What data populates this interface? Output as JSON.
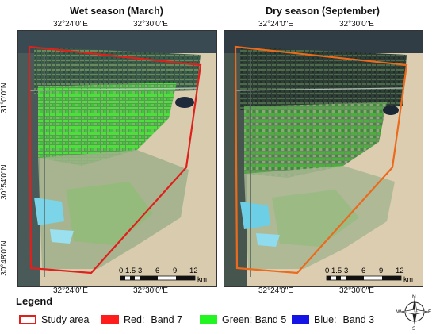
{
  "panels": [
    {
      "title": "Wet season (March)",
      "vegetation_color": "#4ee03a",
      "boundary_color": "#e0201c",
      "scale_labels": [
        "0",
        "1.5",
        "3",
        "6",
        "9",
        "12"
      ],
      "scale_unit": "km"
    },
    {
      "title": "Dry season (September)",
      "vegetation_color": "#4cae3c",
      "boundary_color": "#ec6a1c",
      "scale_labels": [
        "0",
        "1.5",
        "3",
        "6",
        "9",
        "12"
      ],
      "scale_unit": "km"
    }
  ],
  "coords": {
    "lon_a": "32°24'0\"E",
    "lon_b": "32°30'0\"E",
    "lat_a": "31°0'0\"N",
    "lat_b": "30°54'0\"N",
    "lat_c": "30°48'0\"N"
  },
  "legend": {
    "title": "Legend",
    "study_area": "Study area",
    "red_label": "Red:",
    "red_band": "Band 7",
    "green": "Green: Band 5",
    "blue_label": "Blue:",
    "blue_band": "Band 3",
    "study_area_color": "#e0201c",
    "red_color": "#ff1c1c",
    "green_color": "#22f522",
    "blue_color": "#1414e6"
  },
  "compass": {
    "n": "N",
    "s": "S",
    "e": "E",
    "w": "W"
  }
}
